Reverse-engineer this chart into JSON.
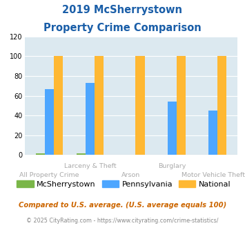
{
  "title_line1": "2019 McSherrystown",
  "title_line2": "Property Crime Comparison",
  "categories": [
    "All Property Crime",
    "Larceny & Theft",
    "Arson",
    "Burglary",
    "Motor Vehicle Theft"
  ],
  "mcsherrystown": [
    2,
    2,
    0,
    0,
    0
  ],
  "pennsylvania": [
    67,
    73,
    0,
    54,
    45
  ],
  "national": [
    100,
    100,
    100,
    100,
    100
  ],
  "color_mc": "#7ab648",
  "color_pa": "#4da6ff",
  "color_nat": "#ffb833",
  "ylim": [
    0,
    120
  ],
  "yticks": [
    0,
    20,
    40,
    60,
    80,
    100,
    120
  ],
  "bg_color": "#dce9f0",
  "legend_labels": [
    "McSherrystown",
    "Pennsylvania",
    "National"
  ],
  "footnote1": "Compared to U.S. average. (U.S. average equals 100)",
  "footnote2": "© 2025 CityRating.com - https://www.cityrating.com/crime-statistics/",
  "title_color": "#1a5ea8",
  "footnote1_color": "#cc6600",
  "footnote2_color": "#888888",
  "xlabel_color": "#aaaaaa",
  "bar_width": 0.22
}
